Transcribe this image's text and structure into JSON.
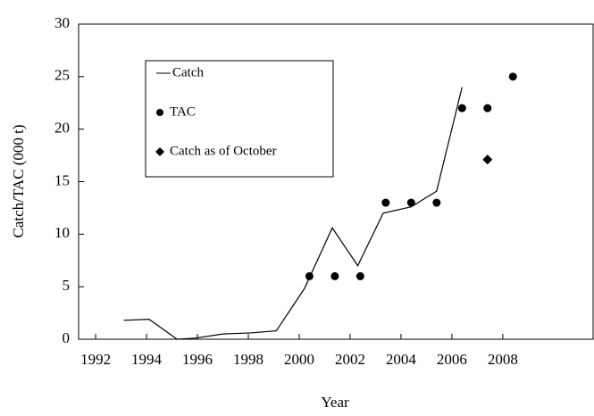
{
  "chart_data": {
    "type": "line",
    "x_label": "Year",
    "y_label": "Catch/TAC (000 t)",
    "xlim": [
      1991.33,
      2011.55
    ],
    "xticks": [
      1992,
      1994,
      1996,
      1998,
      2000,
      2002,
      2004,
      2006,
      2008
    ],
    "ylim": [
      0,
      30
    ],
    "yticks": [
      0,
      5,
      10,
      15,
      20,
      25,
      30
    ],
    "series": [
      {
        "name": "Catch",
        "color": "#000000",
        "marker": "line",
        "x": [
          1993.1,
          1994.1,
          1995.2,
          1995.9,
          1997.0,
          1998.1,
          1999.1,
          2000.2,
          2001.3,
          2002.3,
          2003.3,
          2004.4,
          2005.4,
          2006.4
        ],
        "values": [
          1.8,
          1.9,
          0,
          0.1,
          0.5,
          0.6,
          0.8,
          4.8,
          10.6,
          7.0,
          12.0,
          12.6,
          14.1,
          24.0
        ]
      },
      {
        "name": "TAC",
        "color": "#000000",
        "marker": "circle",
        "x": [
          2000.4,
          2001.4,
          2002.4,
          2003.4,
          2004.4,
          2005.4,
          2006.4,
          2007.4,
          2008.4
        ],
        "values": [
          6,
          6,
          6,
          13,
          13,
          13,
          22,
          22,
          25
        ]
      },
      {
        "name": "Catch as of October",
        "color": "#000000",
        "marker": "diamond",
        "x": [
          2007.4
        ],
        "values": [
          17.1
        ]
      }
    ]
  }
}
